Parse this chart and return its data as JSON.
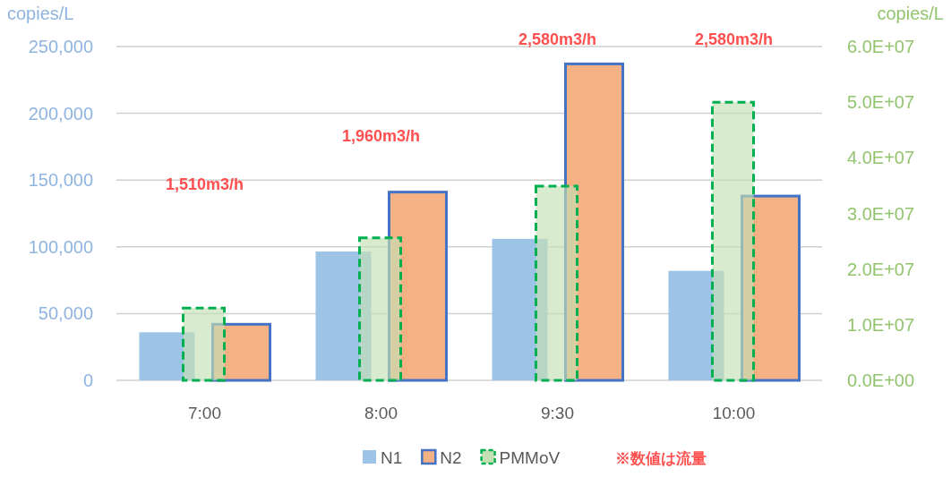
{
  "chart_data": {
    "type": "bar",
    "ylabel": "copies/L",
    "y2label": "copies/L",
    "categories": [
      "7:00",
      "8:00",
      "9:30",
      "10:00"
    ],
    "series": [
      {
        "name": "N1",
        "color": "#9dc3e6",
        "values": [
          36000,
          96500,
          106000,
          82000
        ]
      },
      {
        "name": "N2",
        "color": "#f4b183",
        "values": [
          42000,
          141000,
          237000,
          138000
        ]
      },
      {
        "name": "PMMoV",
        "color": "#c5e0b4",
        "line_style": "dashed",
        "axis": "y2",
        "values": [
          13000000,
          25600000,
          34900000,
          50000000
        ]
      }
    ],
    "ylim": [
      0,
      250000
    ],
    "yticks": [
      0,
      {
        "value": 50000,
        "label": "50,000"
      },
      {
        "value": 100000,
        "label": "100,000"
      },
      {
        "value": 150000,
        "label": "150,000"
      },
      {
        "value": 200000,
        "label": "200,000"
      },
      {
        "value": 250000,
        "label": "250,000"
      }
    ],
    "y2lim": [
      0,
      60000000
    ],
    "y2ticks": [
      {
        "value": 0,
        "label": "0.0E+00"
      },
      {
        "value": 10000000,
        "label": "1.0E+07"
      },
      {
        "value": 20000000,
        "label": "2.0E+07"
      },
      {
        "value": 30000000,
        "label": "3.0E+07"
      },
      {
        "value": 40000000,
        "label": "4.0E+07"
      },
      {
        "value": 50000000,
        "label": "5.0E+07"
      },
      {
        "value": 60000000,
        "label": "6.0E+07"
      }
    ],
    "grid": "y",
    "legend": "bottom",
    "annotations": [
      "1,510m3/h",
      "1,960m3/h",
      "2,580m3/h",
      "2,580m3/h",
      "※数値は流量"
    ]
  }
}
